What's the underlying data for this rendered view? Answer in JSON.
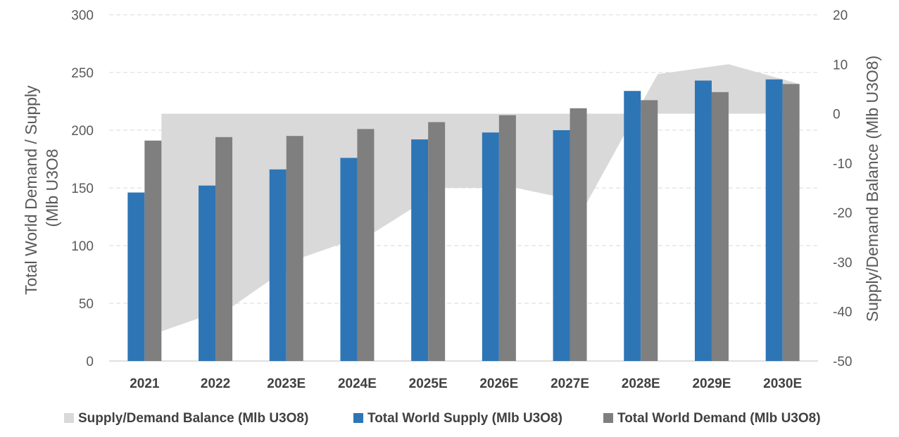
{
  "chart_data": {
    "type": "bar",
    "categories": [
      "2021",
      "2022",
      "2023E",
      "2024E",
      "2025E",
      "2026E",
      "2027E",
      "2028E",
      "2029E",
      "2030E"
    ],
    "series": [
      {
        "name": "Supply/Demand Balance (Mlb U3O8)",
        "kind": "area",
        "axis": "right",
        "color": "#d9d9d9",
        "values": [
          -44,
          -39,
          -29,
          -24,
          -15,
          -15,
          -18,
          8,
          10,
          6
        ]
      },
      {
        "name": "Total World Supply (Mlb U3O8)",
        "kind": "bar",
        "axis": "left",
        "color": "#2e75b6",
        "values": [
          146,
          152,
          166,
          176,
          192,
          198,
          200,
          234,
          243,
          244
        ]
      },
      {
        "name": "Total World Demand (Mlb U3O8)",
        "kind": "bar",
        "axis": "left",
        "color": "#7f7f7f",
        "values": [
          191,
          194,
          195,
          201,
          207,
          213,
          219,
          226,
          233,
          240
        ]
      }
    ],
    "ylabel": "Total World Demand / Supply (Mlb U3O8",
    "y2label": "Supply/Demand Balance (Mlb U3O8)",
    "ylim": [
      0,
      300
    ],
    "yticks": [
      0,
      50,
      100,
      150,
      200,
      250,
      300
    ],
    "y2lim": [
      -50,
      20
    ],
    "y2ticks": [
      -50,
      -40,
      -30,
      -20,
      -10,
      0,
      10,
      20
    ],
    "grid": true,
    "legend": "bottom"
  }
}
